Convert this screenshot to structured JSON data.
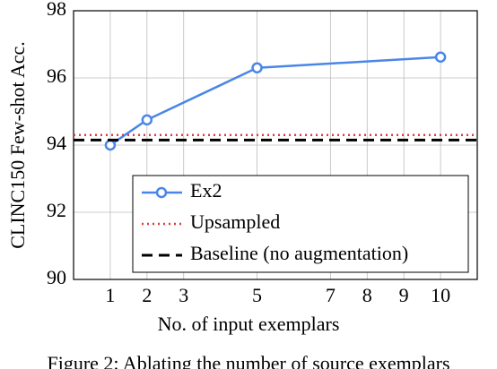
{
  "chart_data": {
    "type": "line",
    "x_label": "No. of input exemplars",
    "y_label": "CLINC150 Few-shot Acc.",
    "caption": "Figure 2: Ablating the number of source exemplars",
    "xlim": [
      0,
      11
    ],
    "xticks": [
      1,
      2,
      3,
      5,
      7,
      8,
      9,
      10
    ],
    "ylim": [
      90,
      98
    ],
    "yticks": [
      90,
      92,
      94,
      96,
      98
    ],
    "grid": true,
    "legend": "lower right",
    "series": [
      {
        "name": "Ex2",
        "color": "#4a86e8",
        "style": "solid-marker",
        "x": [
          1,
          2,
          5,
          10
        ],
        "values": [
          94.0,
          94.75,
          96.3,
          96.62
        ]
      },
      {
        "name": "Upsampled",
        "color": "#e03a3a",
        "style": "dotted",
        "value": 94.3
      },
      {
        "name": "Baseline (no augmentation)",
        "color": "#000000",
        "style": "dashed",
        "value": 94.15
      }
    ]
  }
}
